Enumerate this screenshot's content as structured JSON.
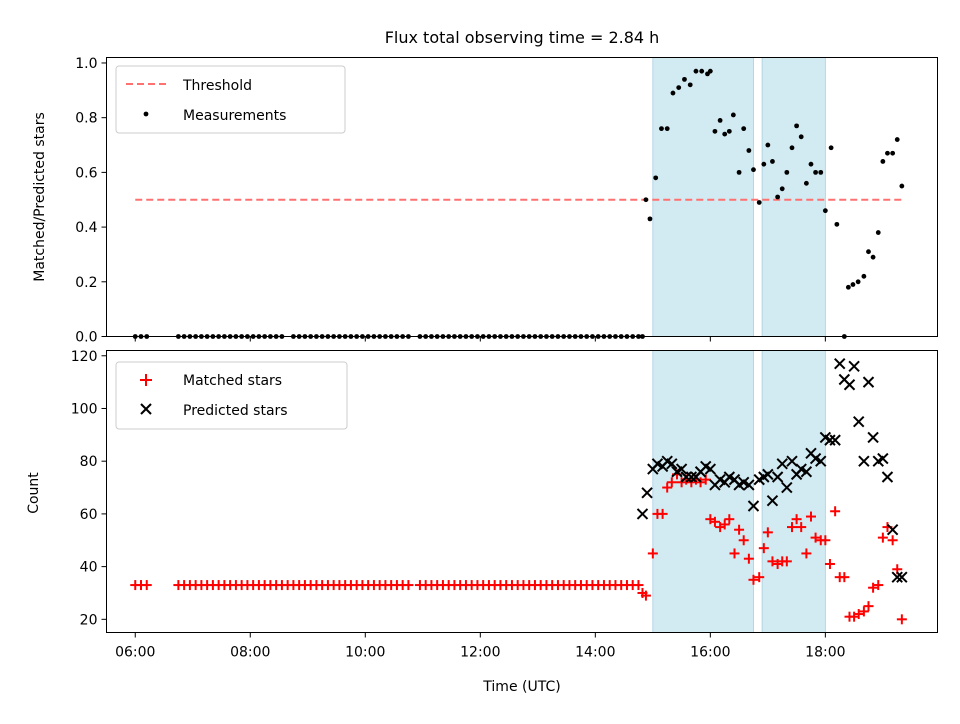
{
  "chart_data": [
    {
      "type": "scatter",
      "title": "Flux total observing time = 2.84 h",
      "ylabel": "Matched/Predicted stars",
      "xlim": [
        5.5,
        19.95
      ],
      "ylim": [
        0.0,
        1.02
      ],
      "x_ticks": [
        6,
        8,
        10,
        12,
        14,
        16,
        18
      ],
      "y_ticks": [
        0.0,
        0.2,
        0.4,
        0.6,
        0.8,
        1.0
      ],
      "y_tick_labels": [
        "0.0",
        "0.2",
        "0.4",
        "0.6",
        "0.8",
        "1.0"
      ],
      "shaded_regions": [
        [
          15.0,
          16.75
        ],
        [
          16.9,
          18.0
        ]
      ],
      "legend": {
        "placement": "top-left",
        "entries": [
          "Threshold",
          "Measurements"
        ]
      },
      "threshold": {
        "name": "Threshold",
        "value": 0.5,
        "x_range": [
          6.0,
          19.33
        ],
        "color": "#ff7070"
      },
      "measurements": {
        "name": "Measurements",
        "color": "#000000",
        "x": [
          6.0,
          6.1,
          6.2,
          6.75,
          6.85,
          6.95,
          7.05,
          7.15,
          7.25,
          7.35,
          7.45,
          7.55,
          7.65,
          7.75,
          7.85,
          7.95,
          8.05,
          8.15,
          8.25,
          8.35,
          8.45,
          8.55,
          8.75,
          8.85,
          8.95,
          9.05,
          9.15,
          9.25,
          9.35,
          9.45,
          9.55,
          9.65,
          9.75,
          9.85,
          9.95,
          10.05,
          10.15,
          10.25,
          10.35,
          10.45,
          10.55,
          10.65,
          10.75,
          10.95,
          11.05,
          11.15,
          11.25,
          11.35,
          11.45,
          11.55,
          11.65,
          11.75,
          11.85,
          11.95,
          12.05,
          12.15,
          12.25,
          12.35,
          12.45,
          12.55,
          12.65,
          12.75,
          12.85,
          12.95,
          13.05,
          13.15,
          13.25,
          13.35,
          13.45,
          13.55,
          13.65,
          13.75,
          13.85,
          13.95,
          14.05,
          14.15,
          14.25,
          14.35,
          14.45,
          14.55,
          14.65,
          14.75,
          14.82,
          14.88,
          14.95,
          15.05,
          15.15,
          15.25,
          15.35,
          15.45,
          15.55,
          15.65,
          15.75,
          15.85,
          15.95,
          16.0,
          16.08,
          16.17,
          16.25,
          16.33,
          16.4,
          16.5,
          16.58,
          16.67,
          16.75,
          16.85,
          16.93,
          17.0,
          17.08,
          17.17,
          17.25,
          17.33,
          17.42,
          17.5,
          17.58,
          17.67,
          17.75,
          17.83,
          17.92,
          18.0,
          18.1,
          18.2,
          18.33,
          18.4,
          18.48,
          18.57,
          18.67,
          18.75,
          18.83,
          18.92,
          19.0,
          19.08,
          19.17,
          19.25,
          19.33
        ],
        "y": [
          0.0,
          0.0,
          0.0,
          0.0,
          0.0,
          0.0,
          0.0,
          0.0,
          0.0,
          0.0,
          0.0,
          0.0,
          0.0,
          0.0,
          0.0,
          0.0,
          0.0,
          0.0,
          0.0,
          0.0,
          0.0,
          0.0,
          0.0,
          0.0,
          0.0,
          0.0,
          0.0,
          0.0,
          0.0,
          0.0,
          0.0,
          0.0,
          0.0,
          0.0,
          0.0,
          0.0,
          0.0,
          0.0,
          0.0,
          0.0,
          0.0,
          0.0,
          0.0,
          0.0,
          0.0,
          0.0,
          0.0,
          0.0,
          0.0,
          0.0,
          0.0,
          0.0,
          0.0,
          0.0,
          0.0,
          0.0,
          0.0,
          0.0,
          0.0,
          0.0,
          0.0,
          0.0,
          0.0,
          0.0,
          0.0,
          0.0,
          0.0,
          0.0,
          0.0,
          0.0,
          0.0,
          0.0,
          0.0,
          0.0,
          0.0,
          0.0,
          0.0,
          0.0,
          0.0,
          0.0,
          0.0,
          0.0,
          0.0,
          0.5,
          0.43,
          0.58,
          0.76,
          0.76,
          0.89,
          0.91,
          0.94,
          0.92,
          0.97,
          0.97,
          0.96,
          0.97,
          0.75,
          0.79,
          0.74,
          0.75,
          0.81,
          0.6,
          0.76,
          0.68,
          0.61,
          0.49,
          0.63,
          0.7,
          0.64,
          0.51,
          0.54,
          0.6,
          0.69,
          0.77,
          0.73,
          0.56,
          0.63,
          0.6,
          0.6,
          0.46,
          0.69,
          0.41,
          0.0,
          0.18,
          0.19,
          0.2,
          0.22,
          0.31,
          0.29,
          0.38,
          0.64,
          0.67,
          0.67,
          0.72,
          0.55
        ]
      }
    },
    {
      "type": "scatter",
      "xlabel": "Time (UTC)",
      "ylabel": "Count",
      "xlim": [
        5.5,
        19.95
      ],
      "ylim": [
        15,
        122
      ],
      "x_ticks": [
        6,
        8,
        10,
        12,
        14,
        16,
        18
      ],
      "x_tick_labels": [
        "06:00",
        "08:00",
        "10:00",
        "12:00",
        "14:00",
        "16:00",
        "18:00"
      ],
      "y_ticks": [
        20,
        40,
        60,
        80,
        100,
        120
      ],
      "y_tick_labels": [
        "20",
        "40",
        "60",
        "80",
        "100",
        "120"
      ],
      "shaded_regions": [
        [
          15.0,
          16.75
        ],
        [
          16.9,
          18.0
        ]
      ],
      "legend": {
        "placement": "top-left",
        "entries": [
          "Matched stars",
          "Predicted stars"
        ]
      },
      "series": [
        {
          "name": "Matched stars",
          "marker": "plus",
          "color": "#ff0000",
          "x": [
            6.0,
            6.1,
            6.2,
            6.75,
            6.85,
            6.95,
            7.05,
            7.15,
            7.25,
            7.35,
            7.45,
            7.55,
            7.65,
            7.75,
            7.85,
            7.95,
            8.05,
            8.15,
            8.25,
            8.35,
            8.45,
            8.55,
            8.65,
            8.75,
            8.85,
            8.95,
            9.05,
            9.15,
            9.25,
            9.35,
            9.45,
            9.55,
            9.65,
            9.75,
            9.85,
            9.95,
            10.05,
            10.15,
            10.25,
            10.35,
            10.45,
            10.55,
            10.65,
            10.75,
            10.95,
            11.05,
            11.15,
            11.25,
            11.35,
            11.45,
            11.55,
            11.65,
            11.75,
            11.85,
            11.95,
            12.05,
            12.15,
            12.25,
            12.35,
            12.45,
            12.55,
            12.65,
            12.75,
            12.85,
            12.95,
            13.05,
            13.15,
            13.25,
            13.35,
            13.45,
            13.55,
            13.65,
            13.75,
            13.85,
            13.95,
            14.05,
            14.15,
            14.25,
            14.35,
            14.45,
            14.55,
            14.65,
            14.75,
            14.82,
            14.88,
            15.0,
            15.08,
            15.17,
            15.25,
            15.33,
            15.42,
            15.5,
            15.58,
            15.67,
            15.75,
            15.83,
            15.92,
            16.0,
            16.08,
            16.17,
            16.25,
            16.33,
            16.42,
            16.5,
            16.58,
            16.67,
            16.75,
            16.85,
            16.93,
            17.0,
            17.08,
            17.17,
            17.25,
            17.33,
            17.42,
            17.5,
            17.58,
            17.67,
            17.75,
            17.83,
            17.92,
            18.0,
            18.08,
            18.17,
            18.25,
            18.33,
            18.42,
            18.5,
            18.58,
            18.67,
            18.75,
            18.83,
            18.92,
            19.0,
            19.08,
            19.17,
            19.25,
            19.33
          ],
          "y": [
            33,
            33,
            33,
            33,
            33,
            33,
            33,
            33,
            33,
            33,
            33,
            33,
            33,
            33,
            33,
            33,
            33,
            33,
            33,
            33,
            33,
            33,
            33,
            33,
            33,
            33,
            33,
            33,
            33,
            33,
            33,
            33,
            33,
            33,
            33,
            33,
            33,
            33,
            33,
            33,
            33,
            33,
            33,
            33,
            33,
            33,
            33,
            33,
            33,
            33,
            33,
            33,
            33,
            33,
            33,
            33,
            33,
            33,
            33,
            33,
            33,
            33,
            33,
            33,
            33,
            33,
            33,
            33,
            33,
            33,
            33,
            33,
            33,
            33,
            33,
            33,
            33,
            33,
            33,
            33,
            33,
            33,
            33,
            30,
            29,
            45,
            60,
            60,
            70,
            72,
            75,
            72,
            73,
            72,
            73,
            72,
            73,
            58,
            57,
            55,
            56,
            58,
            45,
            54,
            50,
            43,
            35,
            36,
            47,
            53,
            42,
            41,
            42,
            42,
            55,
            58,
            55,
            45,
            59,
            51,
            50,
            50,
            41,
            61,
            36,
            36,
            21,
            21,
            22,
            23,
            25,
            32,
            33,
            51,
            55,
            50,
            39,
            20
          ]
        },
        {
          "name": "Predicted stars",
          "marker": "x",
          "color": "#000000",
          "x": [
            14.82,
            14.9,
            15.0,
            15.08,
            15.17,
            15.25,
            15.33,
            15.42,
            15.5,
            15.58,
            15.67,
            15.75,
            15.83,
            15.92,
            16.0,
            16.08,
            16.17,
            16.25,
            16.33,
            16.42,
            16.5,
            16.58,
            16.67,
            16.75,
            16.85,
            16.93,
            17.0,
            17.08,
            17.17,
            17.25,
            17.33,
            17.42,
            17.5,
            17.58,
            17.67,
            17.75,
            17.83,
            17.92,
            18.0,
            18.08,
            18.17,
            18.25,
            18.33,
            18.42,
            18.5,
            18.58,
            18.67,
            18.75,
            18.83,
            18.92,
            19.0,
            19.08,
            19.17,
            19.25,
            19.33
          ],
          "y": [
            60,
            68,
            77,
            79,
            78,
            80,
            79,
            76,
            77,
            74,
            74,
            74,
            76,
            78,
            77,
            71,
            73,
            72,
            74,
            73,
            71,
            72,
            71,
            63,
            73,
            74,
            75,
            65,
            74,
            79,
            70,
            80,
            75,
            77,
            76,
            83,
            81,
            80,
            89,
            88,
            88,
            117,
            111,
            109,
            116,
            95,
            80,
            110,
            89,
            80,
            81,
            74,
            54,
            36,
            36
          ]
        }
      ]
    }
  ]
}
